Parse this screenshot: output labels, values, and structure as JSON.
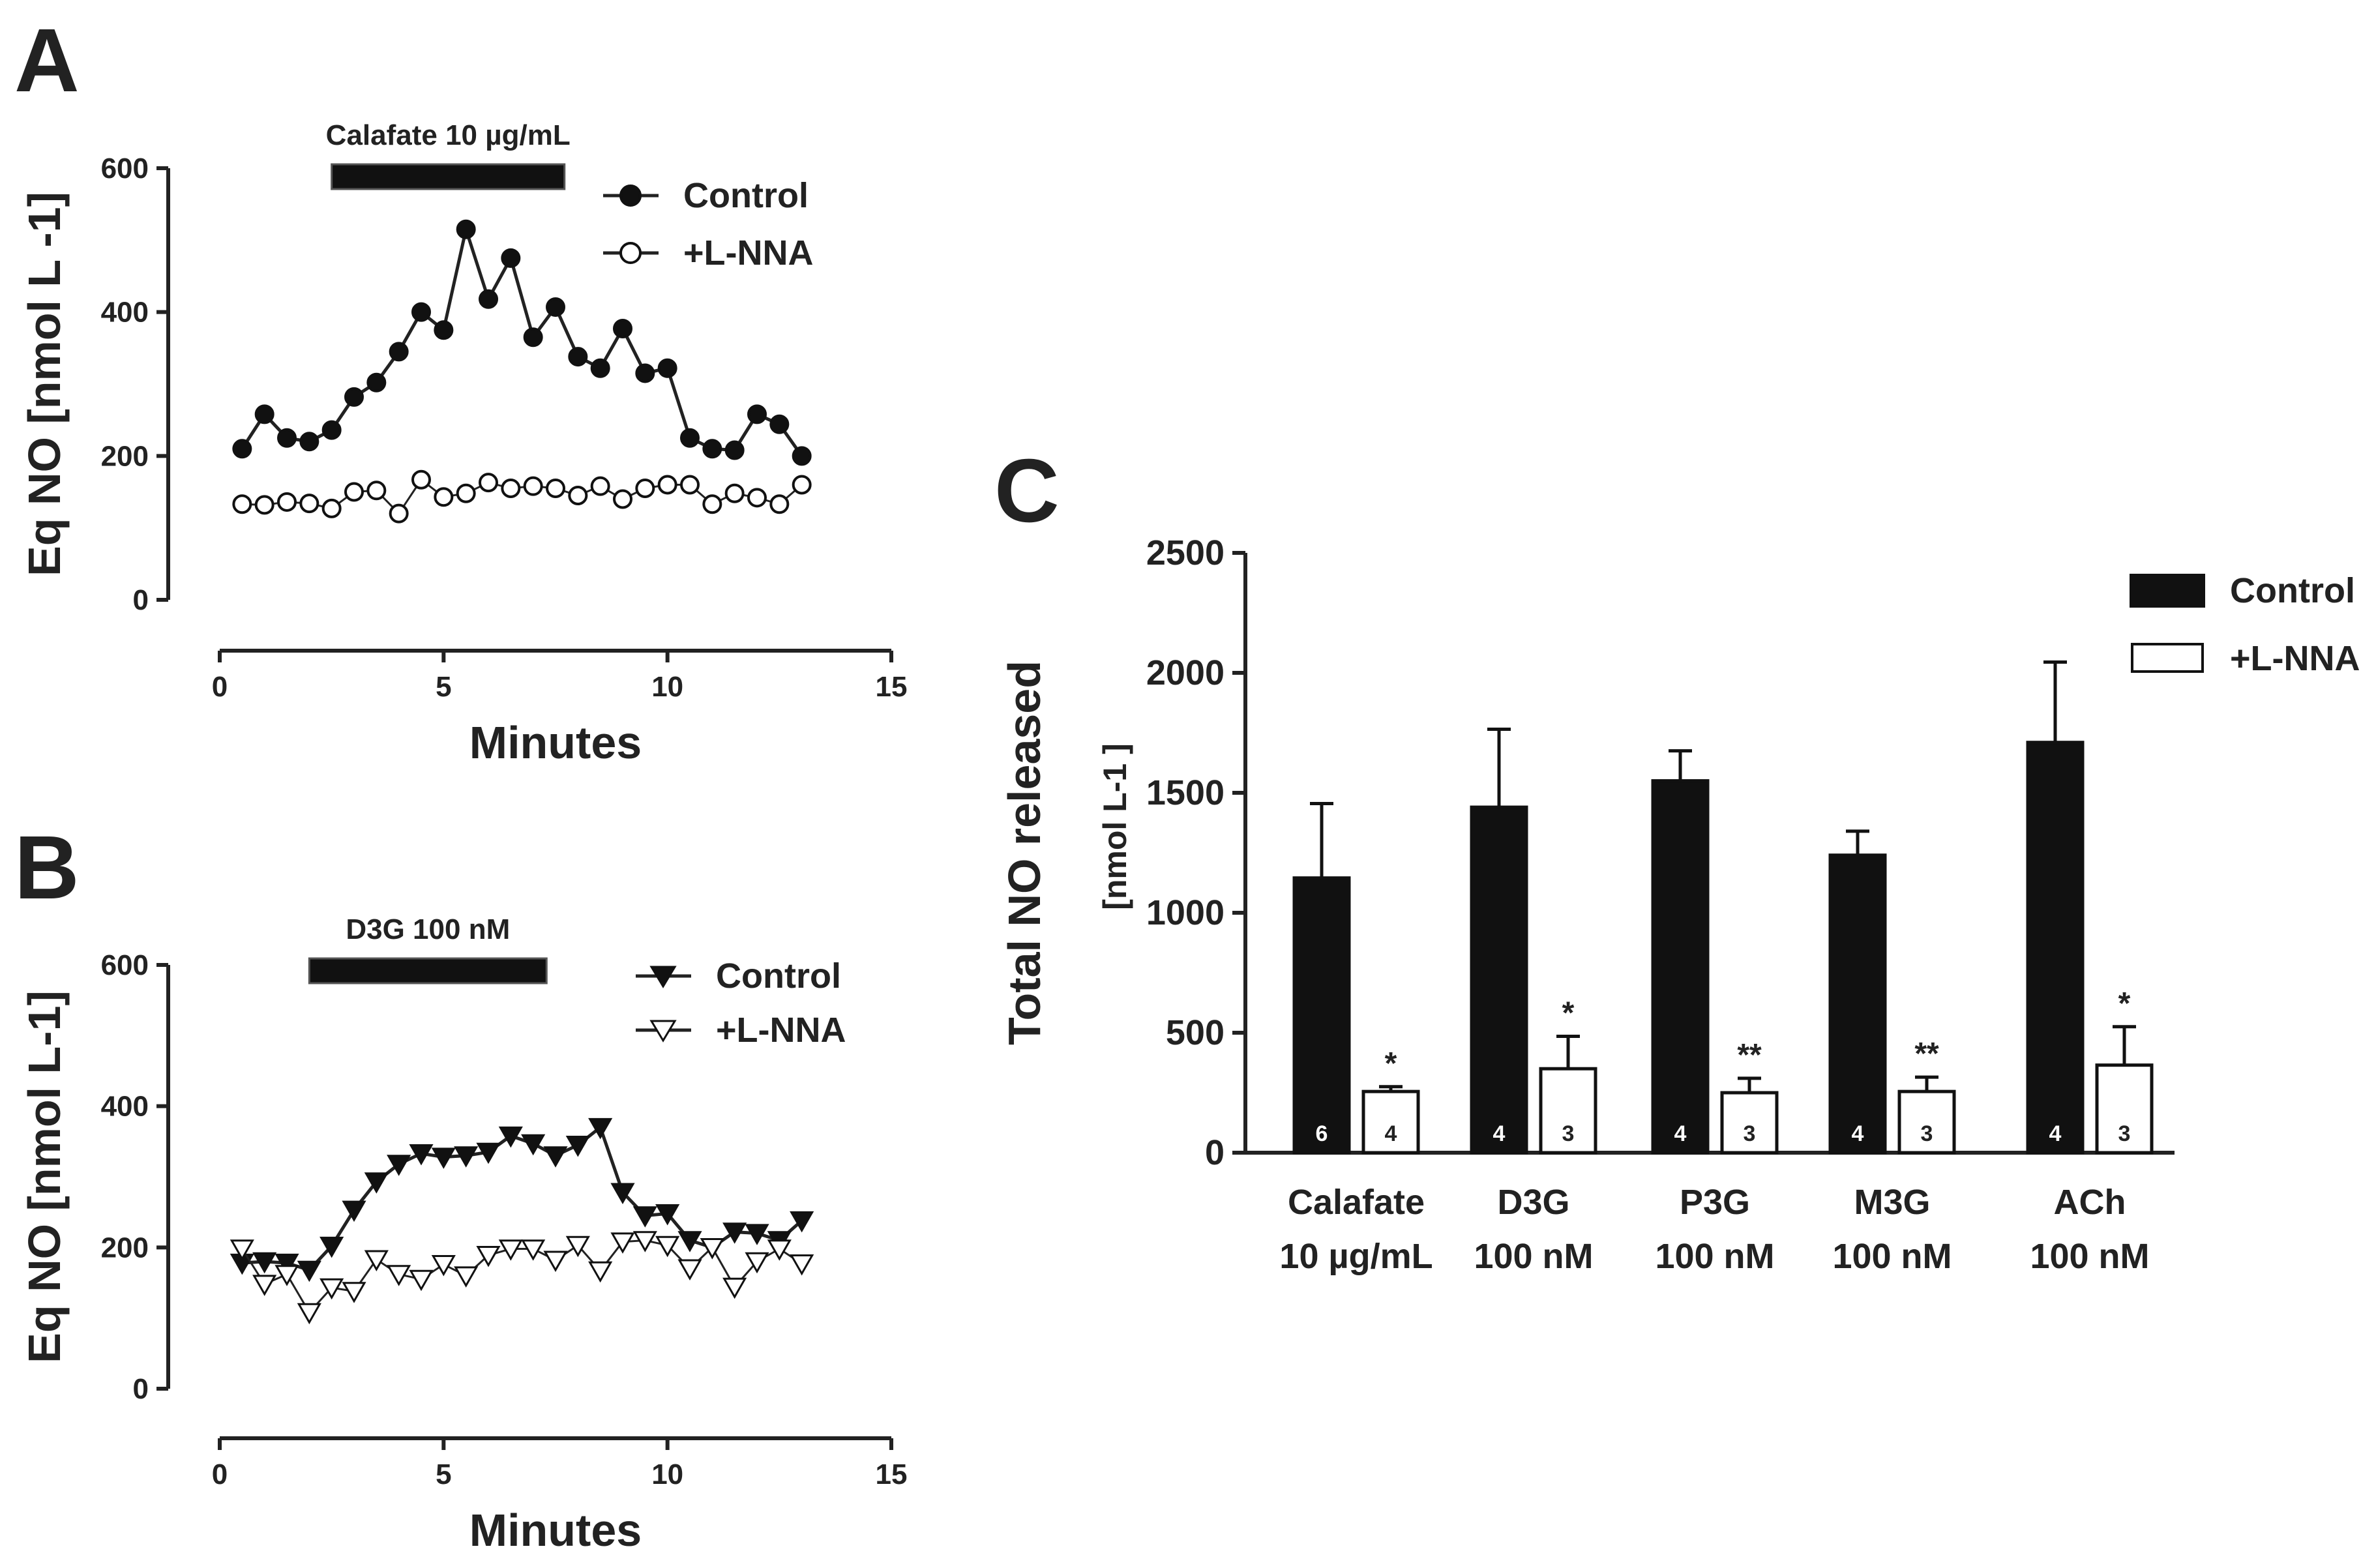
{
  "chart_data": [
    {
      "panel": "A",
      "type": "line",
      "xlabel": "Minutes",
      "ylabel": "Eq NO [nmol L -1]",
      "xlim": [
        0,
        15
      ],
      "ylim": [
        0,
        600
      ],
      "x_ticks": [
        0,
        5,
        10,
        15
      ],
      "y_ticks": [
        0,
        200,
        400,
        600
      ],
      "stimulus": {
        "label": "Calafate 10 µg/mL",
        "start": 2.5,
        "end": 7.7
      },
      "series": [
        {
          "name": "Control",
          "marker": "circle-filled",
          "x": [
            0.5,
            1.0,
            1.5,
            2.0,
            2.5,
            3.0,
            3.5,
            4.0,
            4.5,
            5.0,
            5.5,
            6.0,
            6.5,
            7.0,
            7.5,
            8.0,
            8.5,
            9.0,
            9.5,
            10.0,
            10.5,
            11.0,
            11.5,
            12.0,
            12.5,
            13.0
          ],
          "y": [
            210,
            258,
            225,
            220,
            236,
            282,
            302,
            345,
            400,
            375,
            515,
            418,
            475,
            365,
            407,
            338,
            322,
            377,
            315,
            322,
            225,
            210,
            208,
            258,
            244,
            200
          ]
        },
        {
          "name": "+L-NNA",
          "marker": "circle-open",
          "x": [
            0.5,
            1.0,
            1.5,
            2.0,
            2.5,
            3.0,
            3.5,
            4.0,
            4.5,
            5.0,
            5.5,
            6.0,
            6.5,
            7.0,
            7.5,
            8.0,
            8.5,
            9.0,
            9.5,
            10.0,
            10.5,
            11.0,
            11.5,
            12.0,
            12.5,
            13.0
          ],
          "y": [
            133,
            132,
            136,
            134,
            127,
            150,
            152,
            120,
            167,
            143,
            148,
            163,
            155,
            158,
            155,
            145,
            158,
            140,
            155,
            160,
            160,
            133,
            148,
            142,
            133,
            160
          ]
        }
      ]
    },
    {
      "panel": "B",
      "type": "line",
      "xlabel": "Minutes",
      "ylabel": "Eq NO [nmol L-1]",
      "xlim": [
        0,
        15
      ],
      "ylim": [
        0,
        600
      ],
      "x_ticks": [
        0,
        5,
        10,
        15
      ],
      "y_ticks": [
        0,
        200,
        400,
        600
      ],
      "stimulus": {
        "label": "D3G 100 nM",
        "start": 2.0,
        "end": 7.3
      },
      "series": [
        {
          "name": "Control",
          "marker": "triangle-down-filled",
          "x": [
            0.5,
            1.0,
            1.5,
            2.0,
            2.5,
            3.0,
            3.5,
            4.0,
            4.5,
            5.0,
            5.5,
            6.0,
            6.5,
            7.0,
            7.5,
            8.0,
            8.5,
            9.0,
            9.5,
            10.0,
            10.5,
            11.0,
            11.5,
            12.0,
            12.5,
            13.0
          ],
          "y": [
            178,
            180,
            178,
            168,
            202,
            253,
            293,
            318,
            333,
            328,
            330,
            335,
            358,
            347,
            330,
            345,
            370,
            278,
            245,
            248,
            210,
            200,
            222,
            220,
            210,
            238
          ]
        },
        {
          "name": "+L-NNA",
          "marker": "triangle-down-open",
          "x": [
            0.5,
            1.0,
            1.5,
            2.0,
            2.5,
            3.0,
            3.5,
            4.0,
            4.5,
            5.0,
            5.5,
            6.0,
            6.5,
            7.0,
            7.5,
            8.0,
            8.5,
            9.0,
            9.5,
            10.0,
            10.5,
            11.0,
            11.5,
            12.0,
            12.5,
            13.0
          ],
          "y": [
            198,
            148,
            162,
            108,
            143,
            138,
            183,
            162,
            155,
            176,
            160,
            189,
            198,
            198,
            182,
            203,
            167,
            208,
            210,
            203,
            170,
            200,
            144,
            180,
            198,
            177
          ]
        }
      ]
    },
    {
      "panel": "C",
      "type": "bar",
      "ylabel": "Total NO released",
      "ylabel_units": "[nmol L-1 ]",
      "ylim": [
        0,
        2500
      ],
      "y_ticks": [
        0,
        500,
        1000,
        1500,
        2000,
        2500
      ],
      "categories": [
        {
          "name": "Calafate",
          "sub": "10 µg/mL"
        },
        {
          "name": "D3G",
          "sub": "100 nM"
        },
        {
          "name": "P3G",
          "sub": "100 nM"
        },
        {
          "name": "M3G",
          "sub": "100 nM"
        },
        {
          "name": "ACh",
          "sub": "100 nM"
        }
      ],
      "series": [
        {
          "name": "Control",
          "fill": "#111111",
          "values": [
            1145,
            1440,
            1550,
            1240,
            1710
          ],
          "errors": [
            310,
            325,
            125,
            100,
            335
          ],
          "n": [
            "6",
            "4",
            "4",
            "4",
            "4"
          ],
          "significance": [
            "",
            "",
            "",
            "",
            ""
          ]
        },
        {
          "name": "+L-NNA",
          "fill": "#ffffff",
          "values": [
            255,
            350,
            250,
            255,
            365
          ],
          "errors": [
            20,
            135,
            60,
            60,
            160
          ],
          "n": [
            "4",
            "3",
            "3",
            "3",
            "3"
          ],
          "significance": [
            "*",
            "*",
            "**",
            "**",
            "*"
          ]
        }
      ]
    }
  ],
  "legend": {
    "control": "Control",
    "lnna": "+L-NNA"
  }
}
